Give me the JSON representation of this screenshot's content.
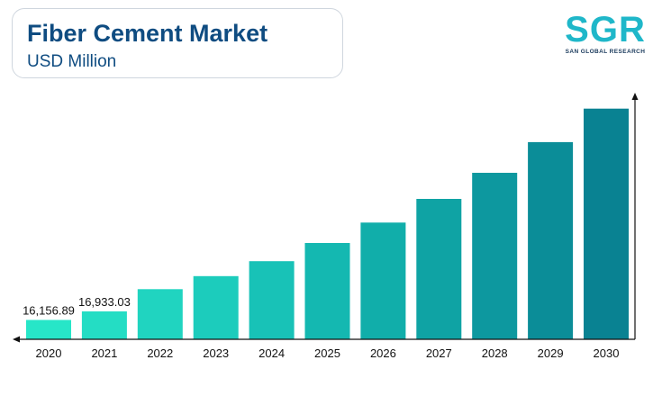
{
  "header": {
    "title": "Fiber Cement Market",
    "subtitle": "USD Million"
  },
  "logo": {
    "letters": "SGR",
    "tagline": "SAN GLOBAL RESEARCH"
  },
  "chart_data": {
    "type": "bar",
    "categories": [
      "2020",
      "2021",
      "2022",
      "2023",
      "2024",
      "2025",
      "2026",
      "2027",
      "2028",
      "2029",
      "2030"
    ],
    "values": [
      16156.89,
      16933.03,
      18950,
      20140,
      21500,
      23150,
      25000,
      27150,
      29520,
      32310,
      35350
    ],
    "data_labels": [
      "16,156.89",
      "16,933.03",
      "",
      "",
      "",
      "",
      "",
      "",
      "",
      "",
      ""
    ],
    "colors": [
      "#27e6c8",
      "#24ddc4",
      "#20d4c0",
      "#1cccbc",
      "#18c2b7",
      "#14b8b1",
      "#11aeaa",
      "#0fa3a4",
      "#0d989f",
      "#0b8d98",
      "#098292"
    ],
    "ylim": [
      14400,
      36800
    ],
    "title": "",
    "xlabel": "",
    "ylabel": "",
    "grid": false,
    "legend": "none"
  }
}
